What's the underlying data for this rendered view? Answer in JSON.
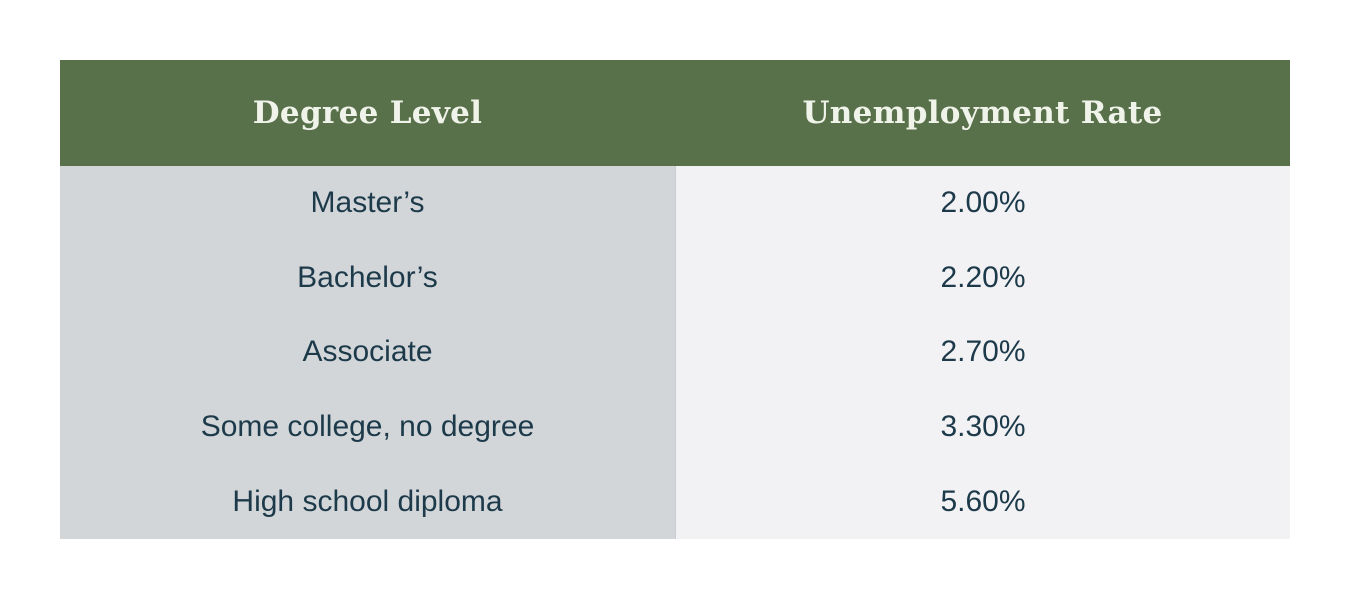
{
  "page": {
    "background_color": "#ffffff"
  },
  "table_style": {
    "header_bg_color": "#58714a",
    "header_text_color": "#f0f3e9",
    "degree_column_bg_color": "#d2d6d9",
    "rate_column_bg_color": "#f2f2f5",
    "body_text_color": "#1d3a4a"
  },
  "chart_data": {
    "type": "table",
    "columns": [
      "Degree Level",
      "Unemployment Rate"
    ],
    "rows": [
      [
        "Master’s",
        "2.00%"
      ],
      [
        "Bachelor’s",
        "2.20%"
      ],
      [
        "Associate",
        "2.70%"
      ],
      [
        "Some college, no degree",
        "3.30%"
      ],
      [
        "High school diploma",
        "5.60%"
      ]
    ],
    "values_percent": [
      2.0,
      2.2,
      2.7,
      3.3,
      5.6
    ],
    "title": "",
    "legend": "none",
    "grid": "off"
  }
}
